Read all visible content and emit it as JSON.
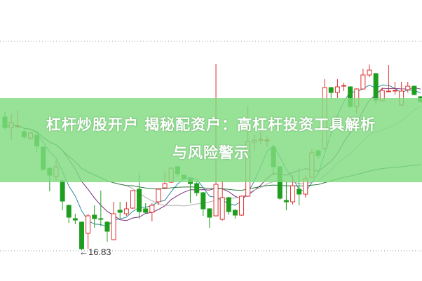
{
  "title": {
    "line1": "杠杆炒股开户 揭秘配资户：高杠杆投资工具解析",
    "line2": "与风险警示"
  },
  "colors": {
    "up": "#e03030",
    "down": "#1e9e1e",
    "banner": "#80dc80",
    "ma": [
      "#2a8aa0",
      "#7a2a7a",
      "#b0b0b0",
      "#2a7a3a"
    ]
  },
  "chart_data": {
    "type": "candlestick",
    "annotation": "←16.83",
    "low_marker": 16.83,
    "grid": "dotted top and bottom lines",
    "ohlc": [
      [
        20.63,
        20.77,
        20.27,
        20.33
      ],
      [
        20.33,
        20.71,
        19.97,
        20.47
      ],
      [
        20.37,
        20.83,
        20.31,
        20.37
      ],
      [
        20.21,
        20.31,
        20.01,
        20.07
      ],
      [
        20.03,
        20.21,
        19.99,
        20.17
      ],
      [
        20.11,
        20.13,
        19.63,
        19.81
      ],
      [
        19.77,
        19.79,
        19.11,
        19.13
      ],
      [
        19.17,
        19.19,
        18.51,
        18.97
      ],
      [
        18.93,
        19.41,
        18.81,
        19.21
      ],
      [
        18.81,
        18.83,
        17.97,
        18.23
      ],
      [
        18.11,
        18.13,
        17.61,
        17.77
      ],
      [
        17.73,
        17.87,
        17.57,
        17.69
      ],
      [
        17.63,
        17.65,
        16.83,
        16.87
      ],
      [
        17.31,
        17.87,
        16.87,
        17.81
      ],
      [
        17.83,
        18.11,
        17.47,
        17.73
      ],
      [
        17.73,
        18.53,
        17.51,
        17.71
      ],
      [
        17.63,
        17.65,
        17.07,
        17.37
      ],
      [
        17.13,
        18.21,
        17.11,
        17.87
      ],
      [
        17.97,
        18.21,
        17.73,
        17.91
      ],
      [
        17.87,
        18.21,
        17.81,
        18.01
      ],
      [
        18.03,
        18.55,
        18.01,
        18.53
      ],
      [
        18.57,
        19.03,
        17.73,
        17.93
      ],
      [
        18.01,
        18.17,
        17.87,
        17.91
      ],
      [
        17.91,
        18.17,
        17.65,
        18.11
      ],
      [
        18.21,
        18.59,
        18.11,
        18.57
      ],
      [
        18.61,
        19.07,
        18.57,
        18.73
      ],
      [
        18.77,
        19.19,
        18.75,
        19.17
      ],
      [
        19.21,
        19.23,
        18.91,
        19.01
      ],
      [
        18.97,
        18.99,
        18.85,
        18.87
      ],
      [
        18.87,
        18.89,
        18.17,
        18.73
      ],
      [
        18.73,
        18.81,
        18.37,
        18.47
      ],
      [
        18.47,
        18.49,
        17.81,
        18.01
      ],
      [
        18.01,
        18.03,
        17.47,
        17.77
      ],
      [
        17.81,
        22.15,
        17.79,
        18.71
      ],
      [
        17.71,
        18.81,
        17.67,
        18.33
      ],
      [
        18.33,
        18.35,
        17.83,
        17.93
      ],
      [
        17.97,
        17.99,
        17.73,
        17.83
      ],
      [
        17.83,
        18.39,
        17.81,
        18.37
      ],
      [
        18.37,
        20.93,
        18.35,
        19.93
      ],
      [
        19.91,
        20.11,
        19.67,
        19.97
      ],
      [
        19.97,
        20.21,
        19.87,
        19.99
      ],
      [
        19.97,
        20.07,
        19.77,
        19.97
      ],
      [
        19.77,
        19.83,
        18.97,
        19.21
      ],
      [
        19.21,
        19.23,
        18.27,
        18.31
      ],
      [
        18.25,
        18.77,
        17.97,
        18.21
      ],
      [
        18.21,
        18.97,
        18.13,
        18.67
      ],
      [
        18.57,
        19.17,
        18.11,
        18.43
      ],
      [
        18.43,
        18.97,
        18.33,
        18.87
      ],
      [
        18.91,
        19.71,
        18.89,
        19.61
      ],
      [
        19.67,
        19.69,
        19.43,
        19.53
      ],
      [
        19.73,
        21.71,
        19.67,
        21.47
      ],
      [
        21.47,
        21.49,
        21.17,
        21.33
      ],
      [
        21.33,
        21.71,
        21.17,
        21.49
      ],
      [
        21.53,
        21.61,
        21.37,
        21.53
      ],
      [
        21.49,
        21.51,
        20.87,
        20.93
      ],
      [
        20.93,
        21.45,
        20.73,
        21.43
      ],
      [
        21.43,
        22.01,
        21.41,
        21.83
      ],
      [
        21.83,
        22.13,
        21.77,
        21.97
      ],
      [
        21.87,
        21.89,
        20.97,
        21.11
      ],
      [
        21.09,
        21.47,
        21.07,
        21.39
      ],
      [
        21.37,
        22.11,
        21.35,
        21.37
      ],
      [
        21.39,
        21.63,
        21.27,
        21.39
      ],
      [
        20.97,
        21.63,
        20.95,
        21.37
      ],
      [
        21.41,
        21.63,
        21.33,
        21.51
      ],
      [
        21.51,
        21.53,
        21.25,
        21.27
      ],
      [
        21.21,
        21.23,
        21.05,
        21.07
      ]
    ],
    "moving_average_periods": [
      5,
      10,
      20,
      60
    ]
  }
}
